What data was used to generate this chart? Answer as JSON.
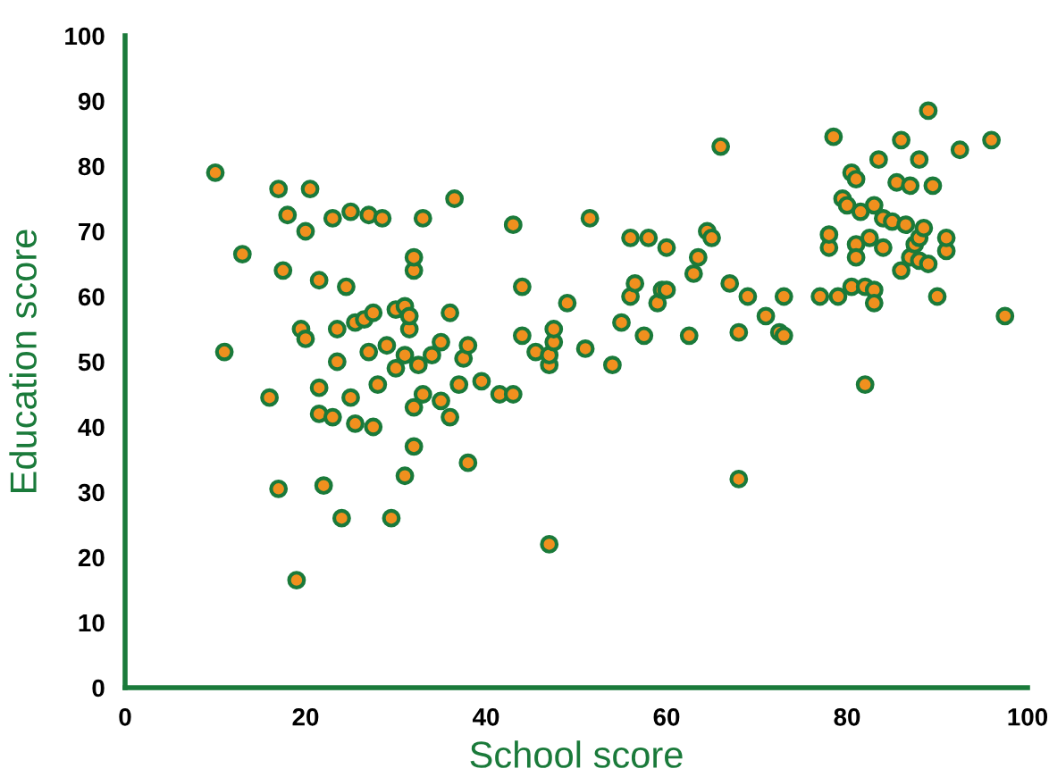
{
  "chart_data": {
    "type": "scatter",
    "xlabel": "School score",
    "ylabel": "Education score",
    "xlim": [
      0,
      100
    ],
    "ylim": [
      0,
      100
    ],
    "xticks": [
      0,
      20,
      40,
      60,
      80,
      100
    ],
    "yticks": [
      0,
      10,
      20,
      30,
      40,
      50,
      60,
      70,
      80,
      90,
      100
    ],
    "grid": false,
    "legend": false,
    "marker": "circle",
    "series": [
      {
        "color": "#f0901e",
        "x": [
          10,
          11,
          13,
          16,
          17,
          17,
          17.5,
          18,
          19,
          19.5,
          20,
          20.5,
          20,
          21.5,
          21.5,
          21.5,
          22,
          23,
          23,
          23.5,
          23.5,
          24,
          24.5,
          25,
          25,
          25.5,
          25.5,
          26.5,
          27,
          27,
          27.5,
          27.5,
          28,
          28.5,
          29,
          29.5,
          30,
          30,
          31,
          31,
          31,
          31.5,
          31.5,
          32,
          32,
          32,
          32,
          32.5,
          33,
          33,
          34,
          35,
          35,
          36,
          36,
          36.5,
          37,
          37.5,
          38,
          38,
          39.5,
          41.5,
          43,
          43,
          44,
          44,
          45.5,
          47,
          47,
          47,
          47.5,
          47.5,
          49,
          51,
          51.5,
          54,
          55,
          56,
          56,
          56.5,
          57.5,
          58,
          59,
          59.5,
          60,
          60,
          62.5,
          63,
          63.5,
          64.5,
          65,
          66,
          67,
          68,
          68,
          69,
          71,
          72.5,
          73,
          73,
          77,
          78,
          78,
          78.5,
          79,
          79.5,
          80,
          80.5,
          80.5,
          81,
          81,
          81,
          81.5,
          82,
          82,
          82.5,
          83,
          83,
          83,
          83.5,
          84,
          84,
          85,
          85.5,
          86,
          86,
          86.5,
          87,
          87,
          87.5,
          88,
          88,
          88,
          88.5,
          89,
          89,
          89.5,
          90,
          91,
          91,
          92.5,
          96,
          97.5
        ],
        "values": [
          79,
          51.5,
          66.5,
          44.5,
          76.5,
          30.5,
          64,
          72.5,
          16.5,
          55,
          70,
          76.5,
          53.5,
          62.5,
          42,
          46,
          31,
          72,
          41.5,
          55,
          50,
          26,
          61.5,
          73,
          44.5,
          40.5,
          56,
          56.5,
          72.5,
          51.5,
          40,
          57.5,
          46.5,
          72,
          52.5,
          26,
          58,
          49,
          58.5,
          51,
          32.5,
          55,
          57,
          64,
          66,
          43,
          37,
          49.5,
          45,
          72,
          51,
          44,
          53,
          41.5,
          57.5,
          75,
          46.5,
          50.5,
          34.5,
          52.5,
          47,
          45,
          71,
          45,
          61.5,
          54,
          51.5,
          22,
          49.5,
          51,
          53,
          55,
          59,
          52,
          72,
          49.5,
          56,
          60,
          69,
          62,
          54,
          69,
          59,
          61,
          61,
          67.5,
          54,
          63.5,
          66,
          70,
          69,
          83,
          62,
          54.5,
          32,
          60,
          57,
          54.5,
          60,
          54,
          60,
          67.5,
          69.5,
          84.5,
          60,
          75,
          74,
          79,
          61.5,
          68,
          78,
          66,
          73,
          46.5,
          61.5,
          69,
          74,
          61,
          59,
          81,
          72,
          67.5,
          71.5,
          77.5,
          64,
          84,
          71,
          77,
          66,
          68,
          81,
          69,
          65.5,
          70.5,
          65,
          88.5,
          77,
          60,
          67,
          69,
          82.5,
          84,
          57
        ]
      }
    ]
  }
}
